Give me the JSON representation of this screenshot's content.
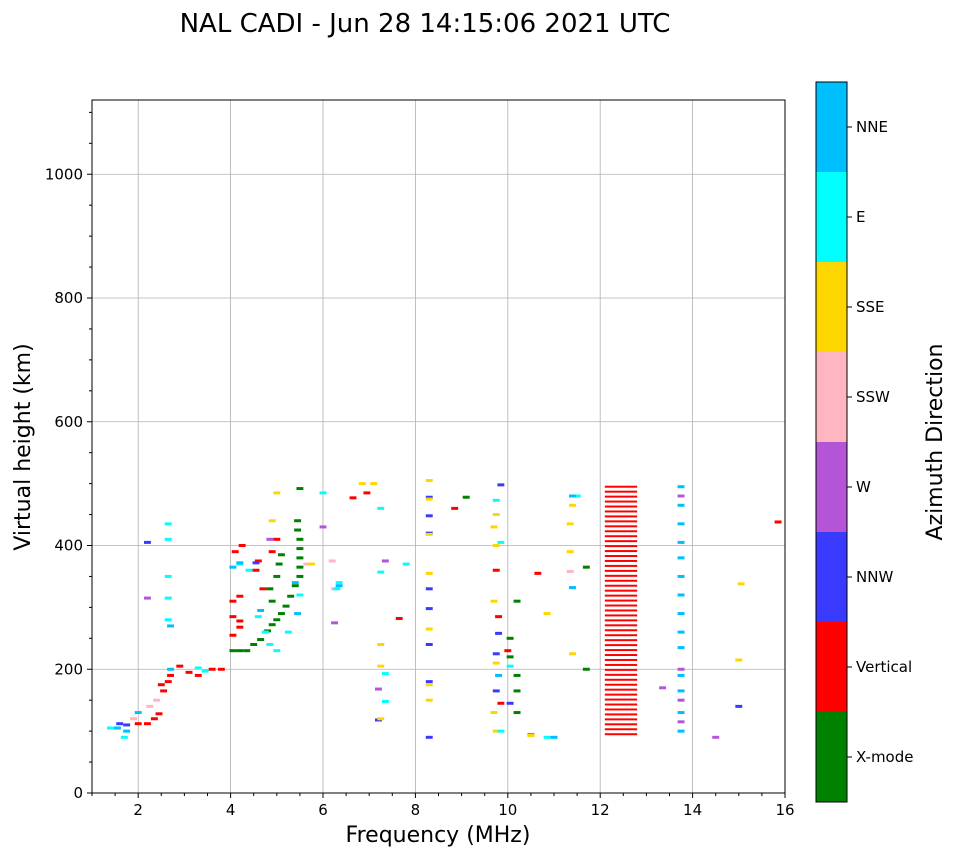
{
  "chart_data": {
    "type": "scatter",
    "title": "NAL CADI - Jun 28 14:15:06 2021 UTC",
    "xlabel": "Frequency (MHz)",
    "ylabel": "Virtual height (km)",
    "xlim": [
      1,
      16
    ],
    "ylim": [
      0,
      1120
    ],
    "xticks": [
      2,
      4,
      6,
      8,
      10,
      12,
      14,
      16
    ],
    "yticks": [
      0,
      200,
      400,
      600,
      800,
      1000
    ],
    "grid": true,
    "colorbar": {
      "label": "Azimuth Direction",
      "categories": [
        {
          "name": "X-mode",
          "color": "#008000"
        },
        {
          "name": "Vertical",
          "color": "#ff0000"
        },
        {
          "name": "NNW",
          "color": "#3a3aff"
        },
        {
          "name": "W",
          "color": "#b455d8"
        },
        {
          "name": "SSW",
          "color": "#ffb6c1"
        },
        {
          "name": "SSE",
          "color": "#ffd700"
        },
        {
          "name": "E",
          "color": "#00ffff"
        },
        {
          "name": "NNE",
          "color": "#00bfff"
        }
      ]
    },
    "series": [
      {
        "name": "X-mode",
        "points": [
          [
            4.05,
            230
          ],
          [
            4.2,
            230
          ],
          [
            4.35,
            230
          ],
          [
            4.5,
            240
          ],
          [
            4.65,
            248
          ],
          [
            4.8,
            262
          ],
          [
            4.9,
            272
          ],
          [
            5.0,
            280
          ],
          [
            5.1,
            290
          ],
          [
            5.2,
            302
          ],
          [
            5.3,
            318
          ],
          [
            5.4,
            335
          ],
          [
            5.5,
            350
          ],
          [
            5.5,
            365
          ],
          [
            5.5,
            380
          ],
          [
            5.5,
            395
          ],
          [
            5.5,
            410
          ],
          [
            5.45,
            425
          ],
          [
            5.45,
            440
          ],
          [
            5.5,
            492
          ],
          [
            5.0,
            350
          ],
          [
            5.05,
            370
          ],
          [
            5.1,
            385
          ],
          [
            4.85,
            330
          ],
          [
            4.9,
            310
          ],
          [
            10.05,
            250
          ],
          [
            10.05,
            220
          ],
          [
            10.2,
            310
          ],
          [
            10.2,
            190
          ],
          [
            10.2,
            165
          ],
          [
            10.2,
            130
          ],
          [
            9.1,
            478
          ],
          [
            11.7,
            365
          ],
          [
            11.7,
            200
          ]
        ]
      },
      {
        "name": "Vertical",
        "points": [
          [
            2.0,
            112
          ],
          [
            2.2,
            112
          ],
          [
            2.35,
            120
          ],
          [
            2.45,
            128
          ],
          [
            2.5,
            175
          ],
          [
            2.65,
            180
          ],
          [
            2.55,
            165
          ],
          [
            2.7,
            190
          ],
          [
            2.9,
            205
          ],
          [
            3.1,
            195
          ],
          [
            3.3,
            190
          ],
          [
            3.6,
            200
          ],
          [
            3.8,
            200
          ],
          [
            4.05,
            255
          ],
          [
            4.2,
            268
          ],
          [
            4.05,
            285
          ],
          [
            4.2,
            278
          ],
          [
            4.05,
            310
          ],
          [
            4.2,
            318
          ],
          [
            4.1,
            390
          ],
          [
            4.25,
            400
          ],
          [
            4.55,
            360
          ],
          [
            4.6,
            375
          ],
          [
            4.9,
            390
          ],
          [
            5.0,
            410
          ],
          [
            4.7,
            330
          ],
          [
            6.65,
            477
          ],
          [
            6.95,
            485
          ],
          [
            8.85,
            460
          ],
          [
            9.75,
            360
          ],
          [
            9.8,
            285
          ],
          [
            10.0,
            230
          ],
          [
            10.65,
            355
          ],
          [
            10.5,
            94
          ],
          [
            15.85,
            438
          ],
          [
            7.65,
            282
          ],
          [
            9.85,
            145
          ]
        ]
      },
      {
        "name": "NNW",
        "points": [
          [
            1.6,
            112
          ],
          [
            1.75,
            110
          ],
          [
            8.3,
            90
          ],
          [
            8.3,
            180
          ],
          [
            8.3,
            240
          ],
          [
            8.3,
            298
          ],
          [
            8.3,
            330
          ],
          [
            8.3,
            420
          ],
          [
            8.3,
            448
          ],
          [
            8.3,
            478
          ],
          [
            9.8,
            258
          ],
          [
            9.75,
            225
          ],
          [
            9.75,
            165
          ],
          [
            10.05,
            145
          ],
          [
            9.85,
            498
          ],
          [
            15.0,
            140
          ],
          [
            2.2,
            405
          ],
          [
            7.2,
            118
          ],
          [
            4.55,
            372
          ]
        ]
      },
      {
        "name": "W",
        "points": [
          [
            13.35,
            170
          ],
          [
            14.5,
            90
          ],
          [
            7.2,
            168
          ],
          [
            6.25,
            275
          ],
          [
            6.0,
            430
          ],
          [
            7.35,
            375
          ],
          [
            2.2,
            315
          ],
          [
            4.85,
            410
          ],
          [
            13.75,
            200
          ],
          [
            13.75,
            150
          ],
          [
            13.75,
            115
          ],
          [
            13.75,
            480
          ]
        ]
      },
      {
        "name": "SSW",
        "points": [
          [
            1.9,
            120
          ],
          [
            2.25,
            140
          ],
          [
            2.4,
            150
          ],
          [
            6.25,
            330
          ],
          [
            6.2,
            375
          ],
          [
            5.65,
            370
          ],
          [
            11.35,
            358
          ]
        ]
      },
      {
        "name": "SSE",
        "points": [
          [
            8.3,
            150
          ],
          [
            8.3,
            175
          ],
          [
            8.3,
            265
          ],
          [
            8.3,
            355
          ],
          [
            8.3,
            418
          ],
          [
            8.3,
            475
          ],
          [
            8.3,
            505
          ],
          [
            9.75,
            400
          ],
          [
            9.7,
            430
          ],
          [
            9.75,
            450
          ],
          [
            9.75,
            100
          ],
          [
            9.7,
            130
          ],
          [
            9.7,
            310
          ],
          [
            9.75,
            210
          ],
          [
            11.4,
            225
          ],
          [
            11.35,
            390
          ],
          [
            11.35,
            435
          ],
          [
            11.4,
            465
          ],
          [
            10.85,
            290
          ],
          [
            10.5,
            93
          ],
          [
            15.0,
            215
          ],
          [
            15.05,
            338
          ],
          [
            4.9,
            440
          ],
          [
            5.0,
            485
          ],
          [
            7.25,
            240
          ],
          [
            7.25,
            205
          ],
          [
            7.1,
            500
          ],
          [
            6.85,
            500
          ],
          [
            5.75,
            370
          ],
          [
            7.25,
            120
          ]
        ]
      },
      {
        "name": "E",
        "points": [
          [
            1.4,
            105
          ],
          [
            1.7,
            90
          ],
          [
            2.65,
            280
          ],
          [
            2.65,
            315
          ],
          [
            2.65,
            350
          ],
          [
            2.65,
            410
          ],
          [
            2.65,
            435
          ],
          [
            3.3,
            202
          ],
          [
            3.45,
            197
          ],
          [
            4.4,
            360
          ],
          [
            4.6,
            285
          ],
          [
            4.85,
            240
          ],
          [
            4.75,
            260
          ],
          [
            5.0,
            230
          ],
          [
            5.25,
            260
          ],
          [
            5.5,
            320
          ],
          [
            6.3,
            330
          ],
          [
            6.35,
            340
          ],
          [
            7.35,
            193
          ],
          [
            7.35,
            148
          ],
          [
            7.25,
            460
          ],
          [
            7.25,
            357
          ],
          [
            7.8,
            370
          ],
          [
            9.75,
            473
          ],
          [
            9.85,
            100
          ],
          [
            9.85,
            405
          ],
          [
            10.85,
            90
          ],
          [
            6.0,
            485
          ],
          [
            4.2,
            370
          ],
          [
            10.05,
            205
          ],
          [
            11.5,
            480
          ]
        ]
      },
      {
        "name": "NNE",
        "points": [
          [
            1.55,
            105
          ],
          [
            1.75,
            100
          ],
          [
            2.0,
            130
          ],
          [
            2.7,
            200
          ],
          [
            2.7,
            270
          ],
          [
            4.05,
            365
          ],
          [
            4.2,
            372
          ],
          [
            4.65,
            295
          ],
          [
            5.4,
            340
          ],
          [
            5.45,
            290
          ],
          [
            6.35,
            335
          ],
          [
            11.4,
            332
          ],
          [
            11.4,
            480
          ],
          [
            13.75,
            100
          ],
          [
            13.75,
            130
          ],
          [
            13.75,
            165
          ],
          [
            13.75,
            190
          ],
          [
            13.75,
            235
          ],
          [
            13.75,
            260
          ],
          [
            13.75,
            290
          ],
          [
            13.75,
            320
          ],
          [
            13.75,
            350
          ],
          [
            13.75,
            380
          ],
          [
            13.75,
            405
          ],
          [
            13.75,
            435
          ],
          [
            13.75,
            465
          ],
          [
            13.75,
            495
          ],
          [
            9.8,
            190
          ],
          [
            11.0,
            90
          ]
        ]
      }
    ],
    "vertical_stack": {
      "series": "Vertical",
      "x_range": [
        12.1,
        12.8
      ],
      "y_range": [
        95,
        498
      ],
      "step": 8
    }
  }
}
